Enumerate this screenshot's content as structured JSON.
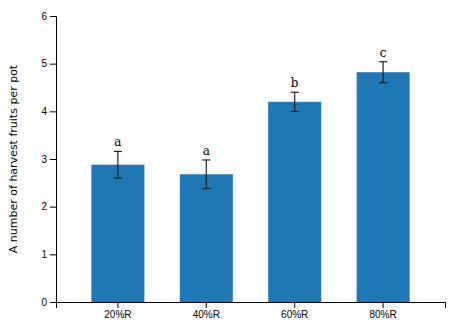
{
  "chart_data": {
    "type": "bar",
    "categories": [
      "20%R",
      "40%R",
      "60%R",
      "80%R"
    ],
    "values": [
      2.88,
      2.68,
      4.2,
      4.82
    ],
    "errors": [
      0.28,
      0.3,
      0.2,
      0.22
    ],
    "annotations": [
      "a",
      "a",
      "b",
      "c"
    ],
    "ylabel": "A number of harvest fruits per pot",
    "ylim": [
      0,
      6
    ],
    "yticks": [
      0,
      1,
      2,
      3,
      4,
      5,
      6
    ]
  }
}
